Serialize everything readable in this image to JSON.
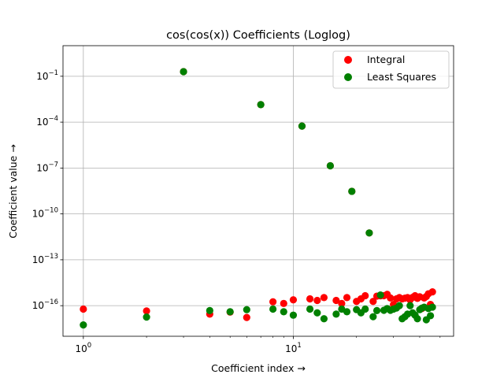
{
  "chart_data": {
    "type": "scatter",
    "title": "cos(cos(x)) Coefficients (Loglog)",
    "xlabel": "Coefficient index  →",
    "ylabel": "Coefficient value  →",
    "xscale": "log",
    "yscale": "log",
    "xlim": [
      0.8,
      58
    ],
    "ylim": [
      1e-18,
      10.0
    ],
    "grid": true,
    "legend_position": "top-right",
    "x_ticks": [
      {
        "value": 1,
        "base": "10",
        "exp": "0"
      },
      {
        "value": 10,
        "base": "10",
        "exp": "1"
      }
    ],
    "y_ticks": [
      {
        "value": 1e-16,
        "base": "10",
        "exp": "−16"
      },
      {
        "value": 1e-13,
        "base": "10",
        "exp": "−13"
      },
      {
        "value": 1e-10,
        "base": "10",
        "exp": "−10"
      },
      {
        "value": 1e-07,
        "base": "10",
        "exp": "−7"
      },
      {
        "value": 0.0001,
        "base": "10",
        "exp": "−4"
      },
      {
        "value": 0.1,
        "base": "10",
        "exp": "−1"
      }
    ],
    "series": [
      {
        "name": "Integral",
        "color": "#ff0000",
        "points": [
          [
            1,
            6e-17
          ],
          [
            2,
            4.5e-17
          ],
          [
            3,
            0.2
          ],
          [
            4,
            2.8e-17
          ],
          [
            5,
            3.8e-17
          ],
          [
            6,
            1.7e-17
          ],
          [
            7,
            0.0014
          ],
          [
            8,
            1.8e-16
          ],
          [
            9,
            1.4e-16
          ],
          [
            10,
            2.4e-16
          ],
          [
            11,
            5.5e-05
          ],
          [
            12,
            2.8e-16
          ],
          [
            13,
            2.2e-16
          ],
          [
            14,
            3.4e-16
          ],
          [
            15,
            1.4e-07
          ],
          [
            16,
            2.2e-16
          ],
          [
            17,
            1.4e-16
          ],
          [
            18,
            3.4e-16
          ],
          [
            19,
            3e-09
          ],
          [
            20,
            1.9e-16
          ],
          [
            21,
            2.8e-16
          ],
          [
            22,
            4.5e-16
          ],
          [
            23,
            5.7e-12
          ],
          [
            24,
            1.9e-16
          ],
          [
            25,
            4.2e-16
          ],
          [
            26,
            4.4e-16
          ],
          [
            27,
            4.5e-16
          ],
          [
            28,
            5.5e-16
          ],
          [
            29,
            3.2e-16
          ],
          [
            30,
            1.2e-16
          ],
          [
            31,
            2.8e-16
          ],
          [
            32,
            3.4e-16
          ],
          [
            33,
            2.8e-16
          ],
          [
            34,
            3.1e-16
          ],
          [
            35,
            3.4e-16
          ],
          [
            36,
            2.4e-16
          ],
          [
            37,
            3.5e-16
          ],
          [
            38,
            4.5e-16
          ],
          [
            39,
            3e-16
          ],
          [
            40,
            3.8e-16
          ],
          [
            41,
            6.5e-17
          ],
          [
            42,
            3.2e-16
          ],
          [
            43,
            4e-16
          ],
          [
            44,
            6e-16
          ],
          [
            45,
            1.2e-16
          ],
          [
            46,
            8e-16
          ]
        ]
      },
      {
        "name": "Least Squares",
        "color": "#008000",
        "points": [
          [
            1,
            5.5e-18
          ],
          [
            2,
            1.8e-17
          ],
          [
            3,
            0.2
          ],
          [
            4,
            4.8e-17
          ],
          [
            5,
            4e-17
          ],
          [
            6,
            5.5e-17
          ],
          [
            7,
            0.0014
          ],
          [
            8,
            6e-17
          ],
          [
            9,
            4e-17
          ],
          [
            10,
            2.4e-17
          ],
          [
            11,
            5.5e-05
          ],
          [
            12,
            6e-17
          ],
          [
            13,
            3.4e-17
          ],
          [
            14,
            1.4e-17
          ],
          [
            15,
            1.4e-07
          ],
          [
            16,
            2.8e-17
          ],
          [
            17,
            6e-17
          ],
          [
            18,
            4e-17
          ],
          [
            19,
            3e-09
          ],
          [
            20,
            5.5e-17
          ],
          [
            21,
            3.4e-17
          ],
          [
            22,
            6e-17
          ],
          [
            23,
            5.7e-12
          ],
          [
            24,
            1.9e-17
          ],
          [
            25,
            4.8e-17
          ],
          [
            26,
            5e-16
          ],
          [
            27,
            5e-17
          ],
          [
            28,
            6.5e-17
          ],
          [
            29,
            5e-17
          ],
          [
            30,
            6e-17
          ],
          [
            31,
            7e-17
          ],
          [
            32,
            1e-16
          ],
          [
            33,
            1.4e-17
          ],
          [
            34,
            1.9e-17
          ],
          [
            35,
            2.8e-17
          ],
          [
            36,
            1e-16
          ],
          [
            37,
            3.4e-17
          ],
          [
            38,
            2.4e-17
          ],
          [
            39,
            1.4e-17
          ],
          [
            40,
            5.5e-17
          ],
          [
            41,
            7e-17
          ],
          [
            42,
            8e-17
          ],
          [
            43,
            1.2e-17
          ],
          [
            44,
            6.5e-17
          ],
          [
            45,
            2.2e-17
          ],
          [
            46,
            8e-17
          ]
        ]
      }
    ]
  }
}
